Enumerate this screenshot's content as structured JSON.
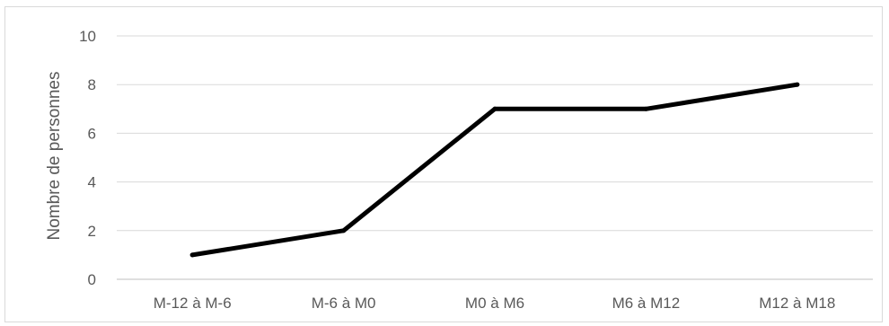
{
  "chart_data": {
    "type": "line",
    "title": "",
    "xlabel": "",
    "ylabel": "Nombre de personnes",
    "categories": [
      "M-12 à M-6",
      "M-6 à M0",
      "M0 à M6",
      "M6 à M12",
      "M12 à M18"
    ],
    "series": [
      {
        "values": [
          1,
          2,
          7,
          7,
          8
        ]
      }
    ],
    "ylim": [
      0,
      10
    ],
    "yticks": [
      0,
      2,
      4,
      6,
      8,
      10
    ],
    "grid": true,
    "legend": "none",
    "colors": {
      "line": "#000000",
      "grid": "#d9d9d9",
      "axis": "#bfbfbf",
      "text": "#595959",
      "frame": "#d9d9d9"
    }
  }
}
